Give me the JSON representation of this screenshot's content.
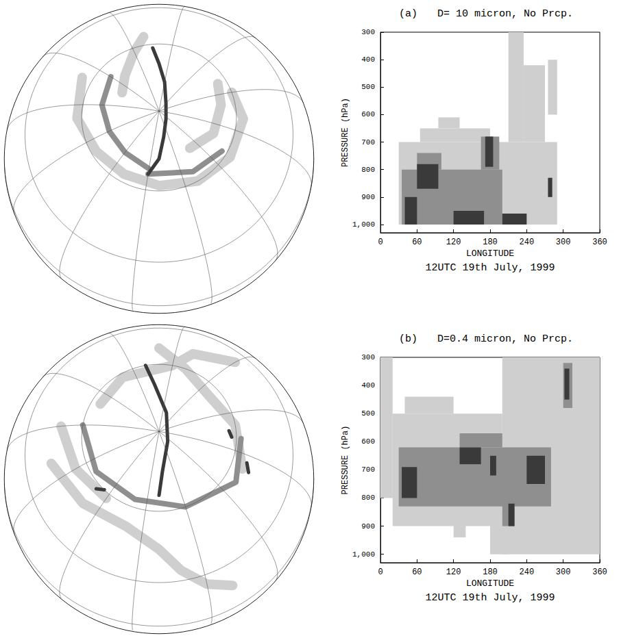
{
  "chart_data": [
    {
      "type": "map",
      "colors": [
        "#cfcfcf",
        "#8f8f8f",
        "#3a3a3a"
      ],
      "plumes": [
        {
          "level": 1,
          "path": [
            [
              40,
              55
            ],
            [
              70,
              58
            ],
            [
              100,
              62
            ],
            [
              130,
              63
            ],
            [
              160,
              62
            ],
            [
              190,
              60
            ],
            [
              220,
              58
            ],
            [
              250,
              57
            ],
            [
              270,
              60
            ]
          ]
        },
        {
          "level": 1,
          "path": [
            [
              350,
              55
            ],
            [
              0,
              62
            ],
            [
              20,
              70
            ],
            [
              40,
              74
            ]
          ]
        },
        {
          "level": 1,
          "path": [
            [
              200,
              72
            ],
            [
              230,
              68
            ],
            [
              260,
              66
            ],
            [
              280,
              64
            ]
          ]
        },
        {
          "level": 2,
          "path": [
            [
              30,
              66
            ],
            [
              60,
              68
            ],
            [
              90,
              70
            ],
            [
              120,
              70
            ],
            [
              150,
              68
            ]
          ]
        },
        {
          "level": 2,
          "path": [
            [
              150,
              66
            ],
            [
              190,
              64
            ],
            [
              220,
              62
            ]
          ]
        },
        {
          "level": 3,
          "path": [
            [
              345,
              62
            ],
            [
              340,
              70
            ],
            [
              330,
              78
            ],
            [
              300,
              86
            ],
            [
              200,
              86
            ],
            [
              170,
              80
            ],
            [
              160,
              72
            ],
            [
              150,
              66
            ]
          ]
        }
      ]
    },
    {
      "type": "heatmap",
      "label": "(a)",
      "title": "D= 10 micron, No Prcp.",
      "caption": "12UTC 19th July, 1999",
      "x_label": "LONGITUDE",
      "y_label": "PRESSURE (hPa)",
      "xlim": [
        0,
        360
      ],
      "xticks": [
        0,
        60,
        120,
        180,
        240,
        300,
        360
      ],
      "ylim": [
        1030,
        300
      ],
      "yticks": [
        300,
        400,
        500,
        600,
        700,
        800,
        900,
        1000
      ],
      "grid": false,
      "colors": [
        "#cfcfcf",
        "#8f8f8f",
        "#3a3a3a"
      ],
      "cells": [
        {
          "lon": [
            30,
            290
          ],
          "pressure": [
            700,
            1000
          ],
          "level": 1
        },
        {
          "lon": [
            65,
            180
          ],
          "pressure": [
            650,
            700
          ],
          "level": 1
        },
        {
          "lon": [
            95,
            130
          ],
          "pressure": [
            610,
            650
          ],
          "level": 1
        },
        {
          "lon": [
            210,
            235
          ],
          "pressure": [
            300,
            700
          ],
          "level": 1
        },
        {
          "lon": [
            235,
            270
          ],
          "pressure": [
            420,
            700
          ],
          "level": 1
        },
        {
          "lon": [
            275,
            290
          ],
          "pressure": [
            400,
            600
          ],
          "level": 1
        },
        {
          "lon": [
            35,
            200
          ],
          "pressure": [
            800,
            1000
          ],
          "level": 2
        },
        {
          "lon": [
            165,
            195
          ],
          "pressure": [
            680,
            800
          ],
          "level": 2
        },
        {
          "lon": [
            60,
            100
          ],
          "pressure": [
            740,
            800
          ],
          "level": 2
        },
        {
          "lon": [
            40,
            60
          ],
          "pressure": [
            900,
            1000
          ],
          "level": 3
        },
        {
          "lon": [
            60,
            95
          ],
          "pressure": [
            780,
            870
          ],
          "level": 3
        },
        {
          "lon": [
            120,
            170
          ],
          "pressure": [
            950,
            1000
          ],
          "level": 3
        },
        {
          "lon": [
            172,
            185
          ],
          "pressure": [
            680,
            790
          ],
          "level": 3
        },
        {
          "lon": [
            200,
            240
          ],
          "pressure": [
            960,
            1000
          ],
          "level": 3
        },
        {
          "lon": [
            275,
            282
          ],
          "pressure": [
            830,
            900
          ],
          "level": 3
        }
      ]
    },
    {
      "type": "map",
      "colors": [
        "#cfcfcf",
        "#8f8f8f",
        "#3a3a3a"
      ],
      "plumes": [
        {
          "level": 1,
          "path": [
            [
              80,
              45
            ],
            [
              110,
              50
            ],
            [
              140,
              52
            ],
            [
              160,
              45
            ],
            [
              170,
              35
            ],
            [
              180,
              25
            ],
            [
              190,
              18
            ]
          ]
        },
        {
          "level": 1,
          "path": [
            [
              230,
              55
            ],
            [
              260,
              60
            ],
            [
              290,
              65
            ],
            [
              320,
              60
            ],
            [
              340,
              50
            ]
          ]
        },
        {
          "level": 1,
          "path": [
            [
              300,
              40
            ],
            [
              320,
              50
            ],
            [
              330,
              60
            ],
            [
              10,
              62
            ],
            [
              40,
              64
            ]
          ]
        },
        {
          "level": 1,
          "path": [
            [
              60,
              50
            ],
            [
              90,
              55
            ],
            [
              120,
              58
            ]
          ]
        },
        {
          "level": 2,
          "path": [
            [
              60,
              60
            ],
            [
              100,
              62
            ],
            [
              140,
              63
            ],
            [
              180,
              60
            ],
            [
              220,
              55
            ],
            [
              250,
              58
            ]
          ]
        },
        {
          "level": 3,
          "path": [
            [
              350,
              60
            ],
            [
              345,
              70
            ],
            [
              320,
              82
            ],
            [
              200,
              85
            ],
            [
              165,
              75
            ],
            [
              160,
              66
            ]
          ]
        },
        {
          "level": 3,
          "path": [
            [
              110,
              58
            ],
            [
              115,
              60
            ]
          ]
        },
        {
          "level": 3,
          "path": [
            [
              230,
              52
            ],
            [
              235,
              54
            ]
          ]
        },
        {
          "level": 3,
          "path": [
            [
              250,
              62
            ],
            [
              255,
              63
            ]
          ]
        }
      ]
    },
    {
      "type": "heatmap",
      "label": "(b)",
      "title": "D=0.4 micron, No Prcp.",
      "caption": "12UTC 19th July, 1999",
      "x_label": "LONGITUDE",
      "y_label": "PRESSURE (hPa)",
      "xlim": [
        0,
        360
      ],
      "xticks": [
        0,
        60,
        120,
        180,
        240,
        300,
        360
      ],
      "ylim": [
        1030,
        300
      ],
      "yticks": [
        300,
        400,
        500,
        600,
        700,
        800,
        900,
        1000
      ],
      "grid": false,
      "colors": [
        "#cfcfcf",
        "#8f8f8f",
        "#3a3a3a"
      ],
      "cells": [
        {
          "lon": [
            0,
            20
          ],
          "pressure": [
            300,
            800
          ],
          "level": 1
        },
        {
          "lon": [
            20,
            200
          ],
          "pressure": [
            500,
            900
          ],
          "level": 1
        },
        {
          "lon": [
            40,
            120
          ],
          "pressure": [
            440,
            500
          ],
          "level": 1
        },
        {
          "lon": [
            200,
            360
          ],
          "pressure": [
            300,
            1000
          ],
          "level": 1
        },
        {
          "lon": [
            120,
            140
          ],
          "pressure": [
            880,
            940
          ],
          "level": 1
        },
        {
          "lon": [
            180,
            210
          ],
          "pressure": [
            850,
            1000
          ],
          "level": 1
        },
        {
          "lon": [
            30,
            280
          ],
          "pressure": [
            620,
            830
          ],
          "level": 2
        },
        {
          "lon": [
            130,
            200
          ],
          "pressure": [
            570,
            620
          ],
          "level": 2
        },
        {
          "lon": [
            200,
            220
          ],
          "pressure": [
            800,
            900
          ],
          "level": 2
        },
        {
          "lon": [
            300,
            315
          ],
          "pressure": [
            320,
            480
          ],
          "level": 2
        },
        {
          "lon": [
            35,
            60
          ],
          "pressure": [
            690,
            800
          ],
          "level": 3
        },
        {
          "lon": [
            130,
            165
          ],
          "pressure": [
            620,
            680
          ],
          "level": 3
        },
        {
          "lon": [
            210,
            220
          ],
          "pressure": [
            820,
            900
          ],
          "level": 3
        },
        {
          "lon": [
            240,
            270
          ],
          "pressure": [
            650,
            750
          ],
          "level": 3
        },
        {
          "lon": [
            302,
            310
          ],
          "pressure": [
            340,
            450
          ],
          "level": 3
        },
        {
          "lon": [
            180,
            190
          ],
          "pressure": [
            650,
            720
          ],
          "level": 3
        }
      ]
    }
  ]
}
